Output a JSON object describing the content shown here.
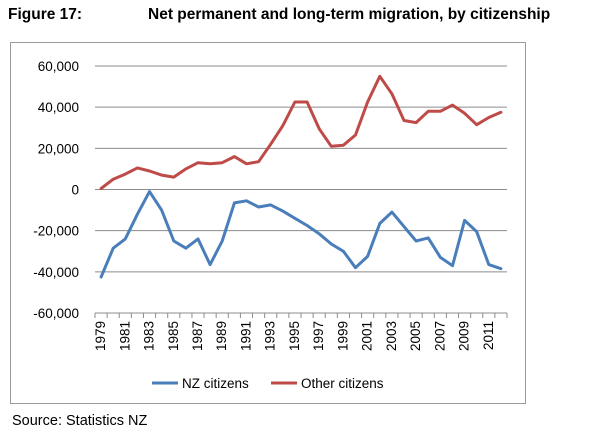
{
  "figure": {
    "number": "Figure 17:",
    "title": "Net permanent and long-term migration, by citizenship"
  },
  "source": "Source: Statistics NZ",
  "chart_data": {
    "type": "line",
    "title": "Net permanent and long-term migration, by citizenship",
    "xlabel": "",
    "ylabel": "",
    "ylim": [
      -60000,
      60000
    ],
    "yticks": [
      -60000,
      -40000,
      -20000,
      0,
      20000,
      40000,
      60000
    ],
    "ytick_labels": [
      "-60,000",
      "-40,000",
      "-20,000",
      "0",
      "20,000",
      "40,000",
      "60,000"
    ],
    "grid": true,
    "legend": "bottom",
    "x": [
      1979,
      1980,
      1981,
      1982,
      1983,
      1984,
      1985,
      1986,
      1987,
      1988,
      1989,
      1990,
      1991,
      1992,
      1993,
      1994,
      1995,
      1996,
      1997,
      1998,
      1999,
      2000,
      2001,
      2002,
      2003,
      2004,
      2005,
      2006,
      2007,
      2008,
      2009,
      2010,
      2011,
      2012
    ],
    "xtick_labels": [
      "1979",
      "1981",
      "1983",
      "1985",
      "1987",
      "1989",
      "1991",
      "1993",
      "1995",
      "1997",
      "1999",
      "2001",
      "2003",
      "2005",
      "2007",
      "2009",
      "2011"
    ],
    "series": [
      {
        "name": "NZ citizens",
        "color": "#4a7ebb",
        "values": [
          -42500,
          -28500,
          -24000,
          -12000,
          -1000,
          -10000,
          -25000,
          -28500,
          -24000,
          -36500,
          -25000,
          -6500,
          -5500,
          -8500,
          -7500,
          -10500,
          -14000,
          -17500,
          -21500,
          -26500,
          -30000,
          -38000,
          -32500,
          -16500,
          -11000,
          -18000,
          -25000,
          -23500,
          -33000,
          -37000,
          -15000,
          -20500,
          -36500,
          -38500
        ]
      },
      {
        "name": "Other citizens",
        "color": "#be4b48",
        "values": [
          500,
          5000,
          7500,
          10500,
          9000,
          7000,
          6000,
          10000,
          13000,
          12500,
          13000,
          16000,
          12500,
          13500,
          22000,
          31000,
          42500,
          42500,
          29500,
          21000,
          21500,
          26500,
          42500,
          55000,
          46500,
          33500,
          32500,
          38000,
          38000,
          41000,
          37000,
          31500,
          35000,
          37500
        ]
      }
    ]
  }
}
